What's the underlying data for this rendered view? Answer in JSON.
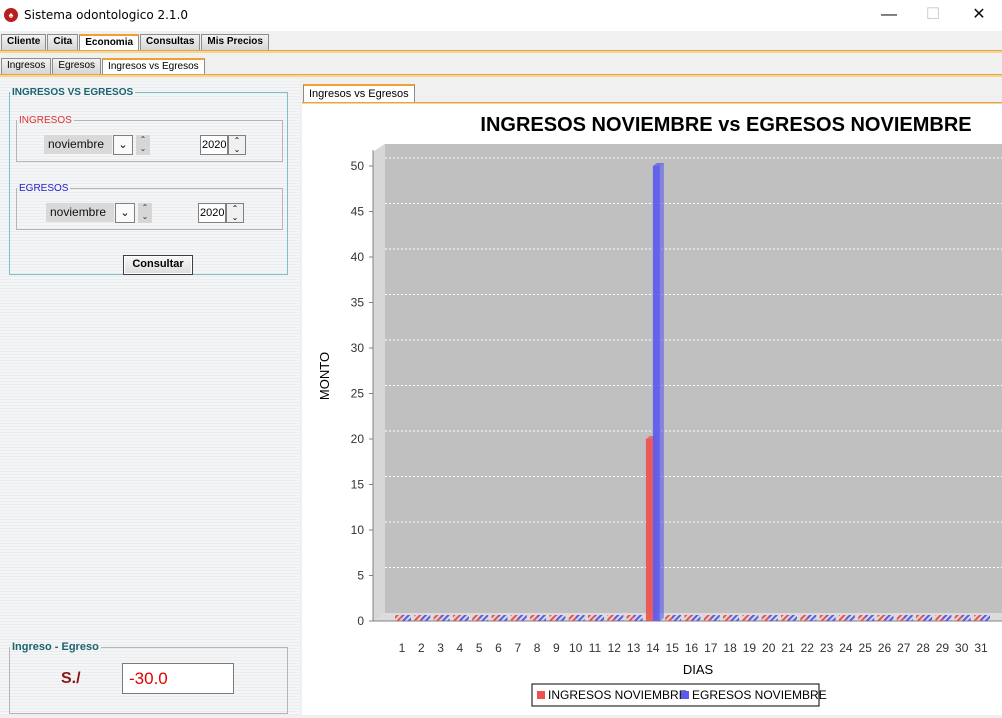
{
  "window": {
    "title": "Sistema odontologico 2.1.0",
    "minimize_glyph": "—",
    "maximize_glyph": "☐",
    "close_glyph": "✕",
    "icon": "tooth-icon"
  },
  "main_tabs": [
    "Cliente",
    "Cita",
    "Economia",
    "Consultas",
    "Mis Precios"
  ],
  "sub_tabs": [
    "Ingresos",
    "Egresos",
    "Ingresos vs Egresos"
  ],
  "chart_tab": "Ingresos vs Egresos",
  "form": {
    "title": "INGRESOS VS EGRESOS",
    "ingresos": {
      "legend": "INGRESOS",
      "month": "noviembre",
      "year": "2020"
    },
    "egresos": {
      "legend": "EGRESOS",
      "month": "noviembre",
      "year": "2020"
    },
    "arrow_glyph": "⌄",
    "up_glyph": "⌃",
    "down_glyph": "⌄",
    "button": "Consultar"
  },
  "summary": {
    "legend": "Ingreso - Egreso",
    "currency": "S./",
    "value": "-30.0"
  },
  "chart_data": {
    "type": "bar",
    "title": "INGRESOS NOVIEMBRE vs EGRESOS NOVIEMBRE",
    "xlabel": "DIAS",
    "ylabel": "MONTO",
    "categories": [
      "1",
      "2",
      "3",
      "4",
      "5",
      "6",
      "7",
      "8",
      "9",
      "10",
      "11",
      "12",
      "13",
      "14",
      "15",
      "16",
      "17",
      "18",
      "19",
      "20",
      "21",
      "22",
      "23",
      "24",
      "25",
      "26",
      "27",
      "28",
      "29",
      "30",
      "31"
    ],
    "series": [
      {
        "name": "INGRESOS NOVIEMBRE",
        "color": "#f05050",
        "values": [
          0,
          0,
          0,
          0,
          0,
          0,
          0,
          0,
          0,
          0,
          0,
          0,
          0,
          20,
          0,
          0,
          0,
          0,
          0,
          0,
          0,
          0,
          0,
          0,
          0,
          0,
          0,
          0,
          0,
          0,
          0
        ]
      },
      {
        "name": "EGRESOS NOVIEMBRE",
        "color": "#5a5aee",
        "values": [
          0,
          0,
          0,
          0,
          0,
          0,
          0,
          0,
          0,
          0,
          0,
          0,
          0,
          50,
          0,
          0,
          0,
          0,
          0,
          0,
          0,
          0,
          0,
          0,
          0,
          0,
          0,
          0,
          0,
          0,
          0
        ]
      }
    ],
    "ylim": [
      0,
      50
    ],
    "yticks": [
      0,
      5,
      10,
      15,
      20,
      25,
      30,
      35,
      40,
      45,
      50
    ],
    "grid": true,
    "legend_position": "bottom",
    "plot_background": "#c0c0c0"
  }
}
